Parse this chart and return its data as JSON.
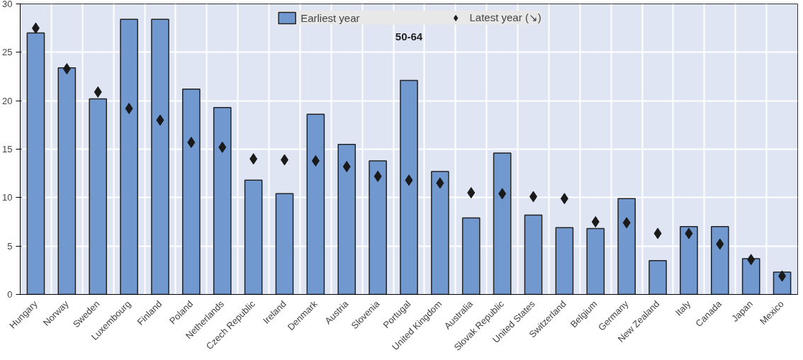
{
  "chart_data": {
    "type": "bar",
    "categories": [
      "Hungary",
      "Norway",
      "Sweden",
      "Luxembourg",
      "Finland",
      "Poland",
      "Netherlands",
      "Czech Republic",
      "Ireland",
      "Denmark",
      "Austria",
      "Slovenia",
      "Portugal",
      "United Kingdom",
      "Australia",
      "Slovak Republic",
      "United States",
      "Switzerland",
      "Belgium",
      "Germany",
      "New Zealand",
      "Italy",
      "Canada",
      "Japan",
      "Mexico"
    ],
    "series": [
      {
        "name": "Earliest year",
        "color": "#7199d0",
        "values": [
          27.0,
          23.4,
          20.2,
          28.4,
          28.4,
          21.2,
          19.3,
          11.8,
          10.4,
          18.6,
          15.5,
          13.8,
          22.1,
          12.7,
          7.9,
          14.6,
          8.2,
          6.9,
          6.8,
          9.9,
          3.5,
          7.0,
          7.0,
          3.7,
          2.3
        ]
      },
      {
        "name": "Latest year (↘)",
        "type": "scatter",
        "marker": "diamond",
        "color": "#1a1a1a",
        "values": [
          27.5,
          23.3,
          20.9,
          19.2,
          18.0,
          15.7,
          15.2,
          14.0,
          13.9,
          13.8,
          13.2,
          12.2,
          11.8,
          11.5,
          10.5,
          10.4,
          10.1,
          9.9,
          7.5,
          7.4,
          6.3,
          6.3,
          5.2,
          3.6,
          1.9
        ]
      }
    ],
    "ylim": [
      0,
      30
    ],
    "yticks": [
      0,
      5,
      10,
      15,
      20,
      25,
      30
    ],
    "grid": true,
    "legend": "top",
    "annotations": [
      "50-64"
    ]
  }
}
